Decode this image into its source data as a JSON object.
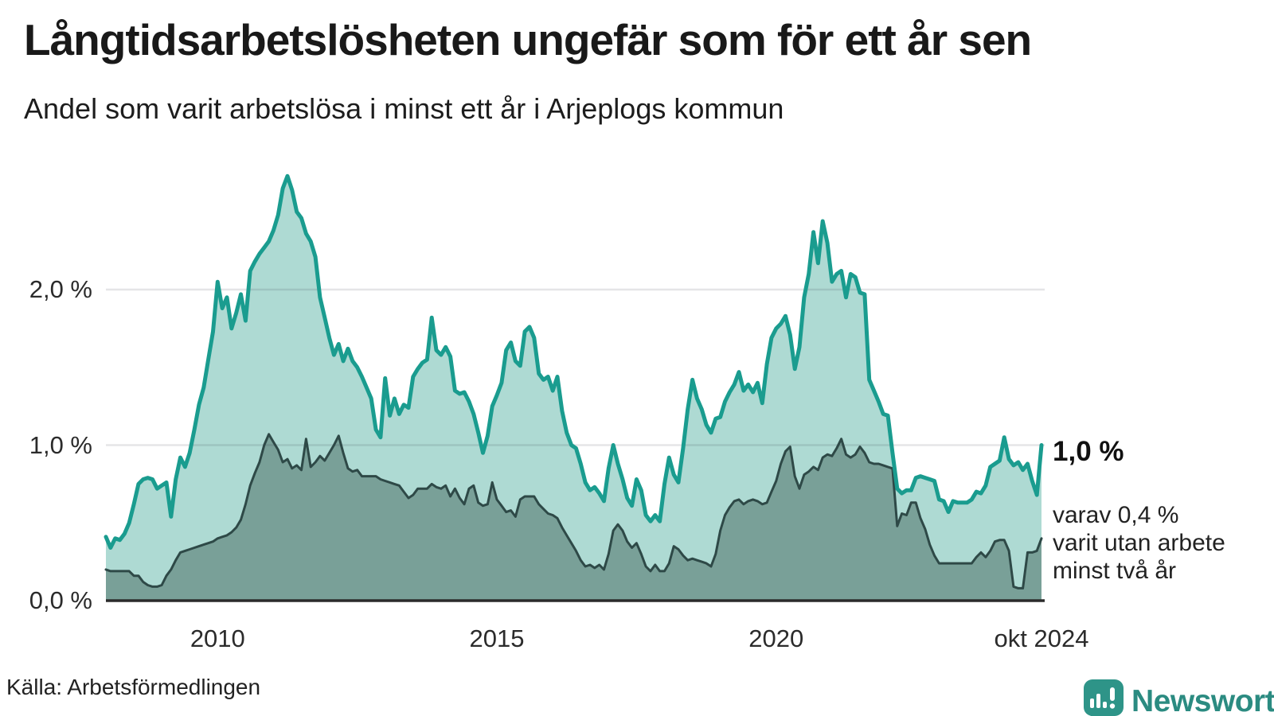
{
  "header": {
    "title": "Långtidsarbetslösheten ungefär som för ett år sen",
    "subtitle": "Andel som varit arbetslösa i minst ett år i Arjeplogs kommun"
  },
  "source": {
    "text": "Källa: Arbetsförmedlingen"
  },
  "footer": {
    "logo_text": "Newsworthy"
  },
  "chart_data": {
    "type": "area",
    "title": "Långtidsarbetslösheten ungefär som för ett år sen",
    "subtitle": "Andel som varit arbetslösa i minst ett år i Arjeplogs kommun",
    "unit": "%",
    "frequency": "monthly",
    "x_start": "2008-01",
    "x_end": "2024-10",
    "ylim": [
      0,
      2.8
    ],
    "grid": "horizontal",
    "legend_position": "right-annotations",
    "y_ticks": [
      {
        "label": "0,0 %",
        "value": 0
      },
      {
        "label": "1,0 %",
        "value": 1
      },
      {
        "label": "2,0 %",
        "value": 2
      }
    ],
    "x_ticks": [
      {
        "label": "2010",
        "month_index": 24
      },
      {
        "label": "2015",
        "month_index": 84
      },
      {
        "label": "2020",
        "month_index": 144
      },
      {
        "label": "okt 2024",
        "month_index": 201
      }
    ],
    "end_label": "1,0 %",
    "annotation": "varav 0,4 %\nvarit utan arbete\nminst två år",
    "colors": {
      "line_1yr": "#1a9c8f",
      "fill_1yr": "#aedad3",
      "line_2yr": "#2e4947",
      "fill_2yr": "#79a098",
      "gridline": "rgba(40,40,55,0.12)",
      "baseline": "#2b2b2b",
      "logo": "#2e9488",
      "wordmark": "#2b8b81"
    },
    "series": [
      {
        "name": "Andel arbetslösa minst ett år",
        "end_value": 1.0,
        "values": [
          0.41,
          0.34,
          0.4,
          0.39,
          0.43,
          0.5,
          0.62,
          0.75,
          0.78,
          0.79,
          0.78,
          0.72,
          0.74,
          0.76,
          0.54,
          0.78,
          0.92,
          0.86,
          0.95,
          1.1,
          1.26,
          1.37,
          1.55,
          1.73,
          2.05,
          1.88,
          1.95,
          1.75,
          1.85,
          1.97,
          1.8,
          2.12,
          2.18,
          2.23,
          2.27,
          2.31,
          2.38,
          2.48,
          2.65,
          2.73,
          2.64,
          2.5,
          2.46,
          2.36,
          2.31,
          2.21,
          1.95,
          1.82,
          1.69,
          1.58,
          1.65,
          1.54,
          1.62,
          1.54,
          1.5,
          1.44,
          1.37,
          1.3,
          1.1,
          1.05,
          1.43,
          1.19,
          1.3,
          1.2,
          1.26,
          1.24,
          1.44,
          1.49,
          1.53,
          1.55,
          1.82,
          1.61,
          1.58,
          1.63,
          1.57,
          1.35,
          1.33,
          1.34,
          1.28,
          1.2,
          1.08,
          0.95,
          1.06,
          1.25,
          1.32,
          1.4,
          1.61,
          1.66,
          1.54,
          1.51,
          1.73,
          1.76,
          1.69,
          1.46,
          1.42,
          1.44,
          1.35,
          1.44,
          1.22,
          1.08,
          1.0,
          0.98,
          0.88,
          0.76,
          0.71,
          0.73,
          0.69,
          0.64,
          0.85,
          1.0,
          0.88,
          0.78,
          0.66,
          0.61,
          0.78,
          0.71,
          0.55,
          0.51,
          0.55,
          0.51,
          0.75,
          0.92,
          0.81,
          0.76,
          0.98,
          1.23,
          1.42,
          1.3,
          1.23,
          1.13,
          1.08,
          1.17,
          1.18,
          1.28,
          1.34,
          1.39,
          1.47,
          1.35,
          1.39,
          1.34,
          1.4,
          1.27,
          1.52,
          1.69,
          1.75,
          1.78,
          1.83,
          1.71,
          1.49,
          1.63,
          1.95,
          2.1,
          2.37,
          2.17,
          2.44,
          2.3,
          2.05,
          2.1,
          2.12,
          1.95,
          2.1,
          2.08,
          1.98,
          1.97,
          1.42,
          1.35,
          1.28,
          1.2,
          1.19,
          0.95,
          0.72,
          0.69,
          0.71,
          0.71,
          0.79,
          0.8,
          0.79,
          0.78,
          0.77,
          0.65,
          0.64,
          0.57,
          0.64,
          0.63,
          0.63,
          0.63,
          0.65,
          0.7,
          0.69,
          0.74,
          0.86,
          0.88,
          0.9,
          1.05,
          0.91,
          0.87,
          0.89,
          0.84,
          0.88,
          0.77,
          0.68,
          1.0
        ]
      },
      {
        "name": "varav utan arbete minst två år",
        "end_value": 0.4,
        "values": [
          0.2,
          0.19,
          0.19,
          0.19,
          0.19,
          0.19,
          0.16,
          0.16,
          0.12,
          0.1,
          0.09,
          0.09,
          0.1,
          0.16,
          0.2,
          0.26,
          0.31,
          0.32,
          0.33,
          0.34,
          0.35,
          0.36,
          0.37,
          0.38,
          0.4,
          0.41,
          0.42,
          0.44,
          0.47,
          0.52,
          0.62,
          0.74,
          0.82,
          0.89,
          1.0,
          1.07,
          1.02,
          0.97,
          0.89,
          0.91,
          0.85,
          0.87,
          0.84,
          1.04,
          0.86,
          0.89,
          0.93,
          0.9,
          0.95,
          1.0,
          1.06,
          0.95,
          0.85,
          0.83,
          0.84,
          0.8,
          0.8,
          0.8,
          0.8,
          0.78,
          0.77,
          0.76,
          0.75,
          0.74,
          0.7,
          0.66,
          0.68,
          0.72,
          0.72,
          0.72,
          0.75,
          0.73,
          0.72,
          0.74,
          0.67,
          0.72,
          0.66,
          0.62,
          0.72,
          0.74,
          0.63,
          0.61,
          0.62,
          0.76,
          0.65,
          0.61,
          0.57,
          0.58,
          0.54,
          0.65,
          0.67,
          0.67,
          0.67,
          0.62,
          0.59,
          0.56,
          0.55,
          0.53,
          0.47,
          0.42,
          0.37,
          0.32,
          0.26,
          0.22,
          0.23,
          0.21,
          0.23,
          0.2,
          0.3,
          0.45,
          0.49,
          0.45,
          0.38,
          0.34,
          0.37,
          0.3,
          0.22,
          0.19,
          0.23,
          0.19,
          0.19,
          0.24,
          0.35,
          0.33,
          0.29,
          0.26,
          0.27,
          0.26,
          0.25,
          0.24,
          0.22,
          0.3,
          0.45,
          0.55,
          0.6,
          0.64,
          0.65,
          0.62,
          0.64,
          0.65,
          0.64,
          0.62,
          0.63,
          0.7,
          0.77,
          0.88,
          0.96,
          0.99,
          0.8,
          0.72,
          0.81,
          0.83,
          0.86,
          0.84,
          0.92,
          0.94,
          0.93,
          0.98,
          1.04,
          0.94,
          0.92,
          0.94,
          0.99,
          0.95,
          0.89,
          0.88,
          0.88,
          0.87,
          0.86,
          0.85,
          0.48,
          0.56,
          0.55,
          0.63,
          0.63,
          0.53,
          0.46,
          0.36,
          0.29,
          0.24,
          0.24,
          0.24,
          0.24,
          0.24,
          0.24,
          0.24,
          0.24,
          0.28,
          0.31,
          0.28,
          0.32,
          0.38,
          0.39,
          0.39,
          0.32,
          0.09,
          0.08,
          0.08,
          0.31,
          0.31,
          0.32,
          0.4
        ]
      }
    ]
  }
}
